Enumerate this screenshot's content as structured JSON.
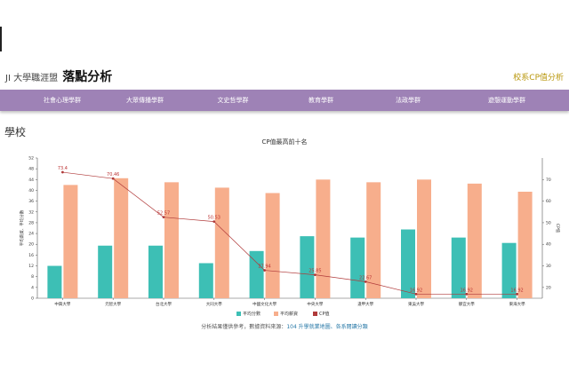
{
  "header": {
    "brand_prefix": "JI 大學職涯盟",
    "title": "落點分析",
    "top_link": "校系CP值分析"
  },
  "nav": {
    "items": [
      {
        "label": "社會心理學群"
      },
      {
        "label": "大眾傳播學群"
      },
      {
        "label": "文史哲學群"
      },
      {
        "label": "教育學群"
      },
      {
        "label": "法政學群"
      },
      {
        "label": "遊憩運動學群"
      }
    ]
  },
  "section": {
    "title": "學校"
  },
  "chart_data": {
    "type": "bar",
    "title": "CP值最高前十名",
    "categories": [
      "中興大學",
      "元智大學",
      "台北大學",
      "大同大學",
      "中國文化大學",
      "中央大學",
      "逢甲大學",
      "東吳大學",
      "靜宜大學",
      "東海大學"
    ],
    "series": [
      {
        "name": "平均分數",
        "type": "bar",
        "color": "#3dbfb5",
        "axis": "left",
        "values": [
          12,
          19.5,
          19.5,
          13,
          17.5,
          23,
          22.5,
          25.5,
          22.5,
          20.5
        ]
      },
      {
        "name": "平均薪資",
        "type": "bar",
        "color": "#f7ae8c",
        "axis": "left",
        "values": [
          42,
          44.5,
          43,
          41,
          39,
          44,
          43,
          44,
          42.5,
          39.5
        ]
      },
      {
        "name": "CP值",
        "type": "line",
        "color": "#b03a3a",
        "axis": "right",
        "values": [
          73.4,
          70.46,
          52.57,
          50.53,
          27.94,
          25.85,
          22.67,
          16.92,
          16.92,
          16.92
        ],
        "labels": [
          "73.4",
          "70.46",
          "52.57",
          "50.53",
          "27.94",
          "25.85",
          "22.67",
          "16.92",
          "16.92",
          "16.92"
        ]
      }
    ],
    "left_axis": {
      "label": "平均薪資、平均分數",
      "ticks": [
        "0",
        "4",
        "8",
        "12",
        "16",
        "20",
        "24",
        "28",
        "32",
        "36",
        "40",
        "44",
        "48",
        "52"
      ],
      "ylim": [
        0,
        52
      ]
    },
    "right_axis": {
      "label": "CP值",
      "ticks": [
        "20",
        "30",
        "40",
        "50",
        "60",
        "70"
      ],
      "ylim": [
        15,
        80
      ]
    },
    "legend": [
      "平均分數",
      "平均薪資",
      "CP值"
    ],
    "legend_position": "bottom"
  },
  "footer": {
    "text": "分析結果僅供參考，數據資料來源：",
    "link": "104 升學就業地圖、各系閱讀分類"
  },
  "colors": {
    "nav": "#9e82b6",
    "accent": "#b8960a",
    "teal": "#3dbfb5",
    "salmon": "#f7ae8c",
    "line": "#b03a3a"
  }
}
